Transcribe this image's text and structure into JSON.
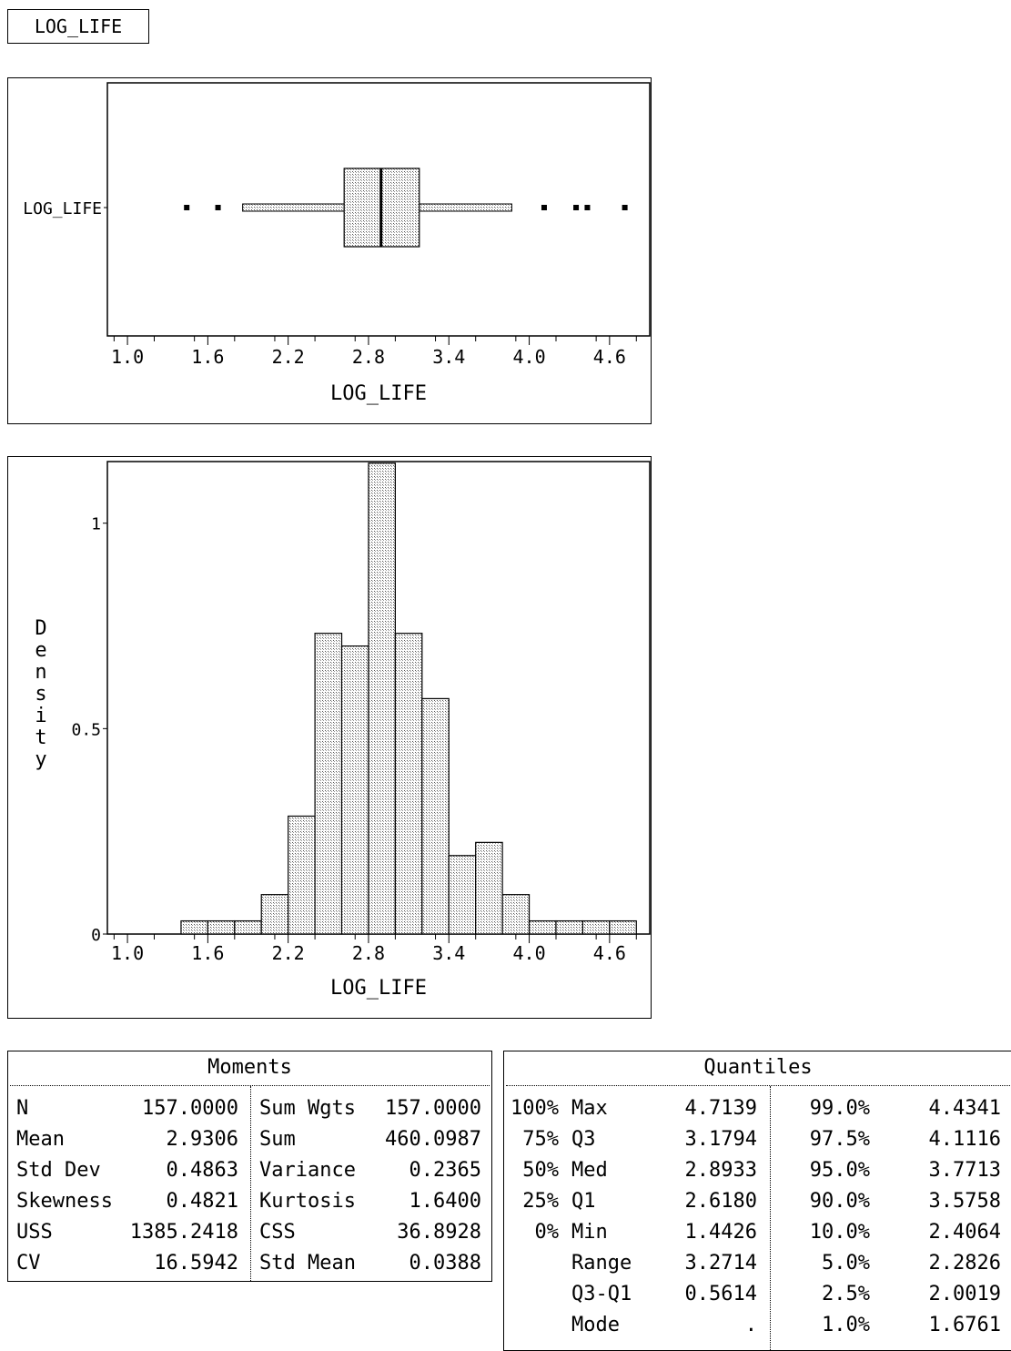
{
  "variable_label": "LOG_LIFE",
  "colors": {
    "fill": "#cfcfcf",
    "stroke": "#000000"
  },
  "chart_data": [
    {
      "type": "box",
      "category": "LOG_LIFE",
      "xlabel": "LOG_LIFE",
      "xticks": [
        1.0,
        1.6,
        2.2,
        2.8,
        3.4,
        4.0,
        4.6
      ],
      "xtick_labels": [
        "1.0",
        "1.6",
        "2.2",
        "2.8",
        "3.4",
        "4.0",
        "4.6"
      ],
      "xlim": [
        0.85,
        4.9
      ],
      "whisker_low": 1.86,
      "q1": 2.618,
      "median": 2.8933,
      "q3": 3.1794,
      "whisker_high": 3.87,
      "outliers": [
        1.4426,
        1.6761,
        4.1116,
        4.35,
        4.4341,
        4.7139
      ]
    },
    {
      "type": "bar",
      "xlabel": "LOG_LIFE",
      "ylabel": "Density",
      "xticks": [
        1.0,
        1.6,
        2.2,
        2.8,
        3.4,
        4.0,
        4.6
      ],
      "xtick_labels": [
        "1.0",
        "1.6",
        "2.2",
        "2.8",
        "3.4",
        "4.0",
        "4.6"
      ],
      "yticks": [
        0,
        0.5,
        1
      ],
      "ytick_labels": [
        "0",
        "0.5",
        "1"
      ],
      "xlim": [
        0.85,
        4.9
      ],
      "ylim": [
        0,
        1.15
      ],
      "bin_width": 0.2,
      "bin_starts": [
        1.4,
        1.6,
        1.8,
        2.0,
        2.2,
        2.4,
        2.6,
        2.8,
        3.0,
        3.2,
        3.4,
        3.6,
        3.8,
        4.0,
        4.2,
        4.4,
        4.6
      ],
      "values": [
        0.032,
        0.032,
        0.032,
        0.096,
        0.287,
        0.732,
        0.701,
        1.146,
        0.732,
        0.573,
        0.191,
        0.223,
        0.096,
        0.032,
        0.032,
        0.032,
        0.032
      ]
    }
  ],
  "moments": {
    "title": "Moments",
    "rows": [
      {
        "label": "N",
        "value": "157.0000",
        "label2": "Sum Wgts",
        "value2": "157.0000"
      },
      {
        "label": "Mean",
        "value": "2.9306",
        "label2": "Sum",
        "value2": "460.0987"
      },
      {
        "label": "Std Dev",
        "value": "0.4863",
        "label2": "Variance",
        "value2": "0.2365"
      },
      {
        "label": "Skewness",
        "value": "0.4821",
        "label2": "Kurtosis",
        "value2": "1.6400"
      },
      {
        "label": "USS",
        "value": "1385.2418",
        "label2": "CSS",
        "value2": "36.8928"
      },
      {
        "label": "CV",
        "value": "16.5942",
        "label2": "Std Mean",
        "value2": "0.0388"
      }
    ]
  },
  "quantiles": {
    "title": "Quantiles",
    "rows": [
      {
        "pct": "100%",
        "label": "Max",
        "value": "4.7139",
        "pct2": "99.0%",
        "value2": "4.4341"
      },
      {
        "pct": "75%",
        "label": "Q3",
        "value": "3.1794",
        "pct2": "97.5%",
        "value2": "4.1116"
      },
      {
        "pct": "50%",
        "label": "Med",
        "value": "2.8933",
        "pct2": "95.0%",
        "value2": "3.7713"
      },
      {
        "pct": "25%",
        "label": "Q1",
        "value": "2.6180",
        "pct2": "90.0%",
        "value2": "3.5758"
      },
      {
        "pct": "0%",
        "label": "Min",
        "value": "1.4426",
        "pct2": "10.0%",
        "value2": "2.4064"
      },
      {
        "pct": "",
        "label": "Range",
        "value": "3.2714",
        "pct2": "5.0%",
        "value2": "2.2826"
      },
      {
        "pct": "",
        "label": "Q3-Q1",
        "value": "0.5614",
        "pct2": "2.5%",
        "value2": "2.0019"
      },
      {
        "pct": "",
        "label": "Mode",
        "value": ".",
        "pct2": "1.0%",
        "value2": "1.6761"
      }
    ]
  }
}
